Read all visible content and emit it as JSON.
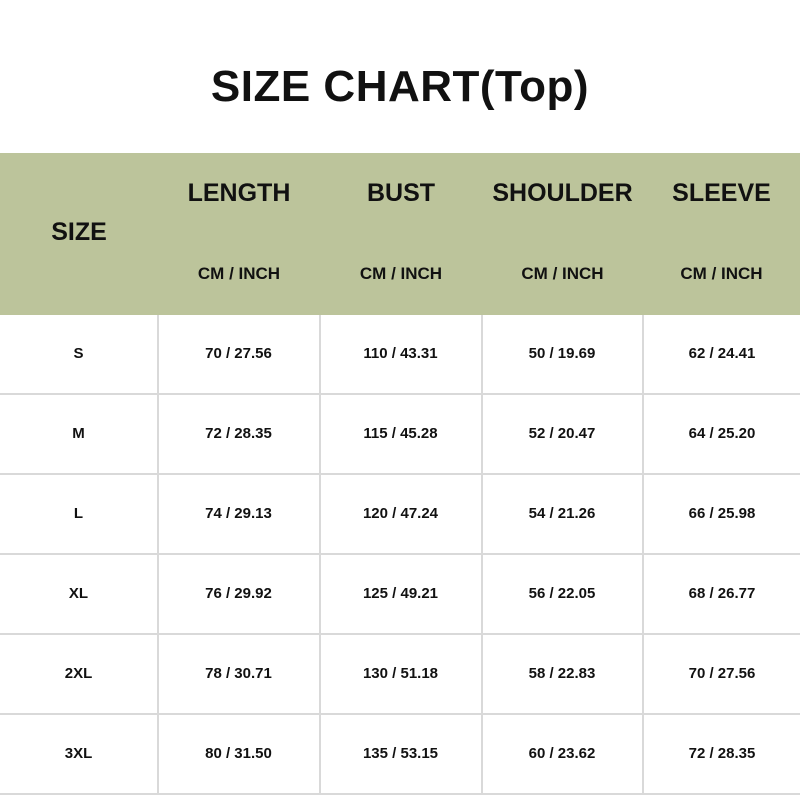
{
  "title": "SIZE CHART(Top)",
  "colors": {
    "header_bg": "#bcc49b",
    "grid": "#d9d9d9"
  },
  "table": {
    "size_header": "SIZE",
    "columns": [
      {
        "name": "LENGTH",
        "unit": "CM / INCH"
      },
      {
        "name": "BUST",
        "unit": "CM / INCH"
      },
      {
        "name": "SHOULDER",
        "unit": "CM / INCH"
      },
      {
        "name": "SLEEVE",
        "unit": "CM / INCH"
      }
    ],
    "rows": [
      {
        "size": "S",
        "values": [
          "70 / 27.56",
          "110 / 43.31",
          "50 / 19.69",
          "62 / 24.41"
        ]
      },
      {
        "size": "M",
        "values": [
          "72 / 28.35",
          "115 / 45.28",
          "52 / 20.47",
          "64 / 25.20"
        ]
      },
      {
        "size": "L",
        "values": [
          "74 / 29.13",
          "120 / 47.24",
          "54 / 21.26",
          "66 / 25.98"
        ]
      },
      {
        "size": "XL",
        "values": [
          "76 / 29.92",
          "125 / 49.21",
          "56 / 22.05",
          "68 / 26.77"
        ]
      },
      {
        "size": "2XL",
        "values": [
          "78 / 30.71",
          "130 / 51.18",
          "58 / 22.83",
          "70 / 27.56"
        ]
      },
      {
        "size": "3XL",
        "values": [
          "80 / 31.50",
          "135 / 53.15",
          "60 / 23.62",
          "72 / 28.35"
        ]
      }
    ]
  }
}
